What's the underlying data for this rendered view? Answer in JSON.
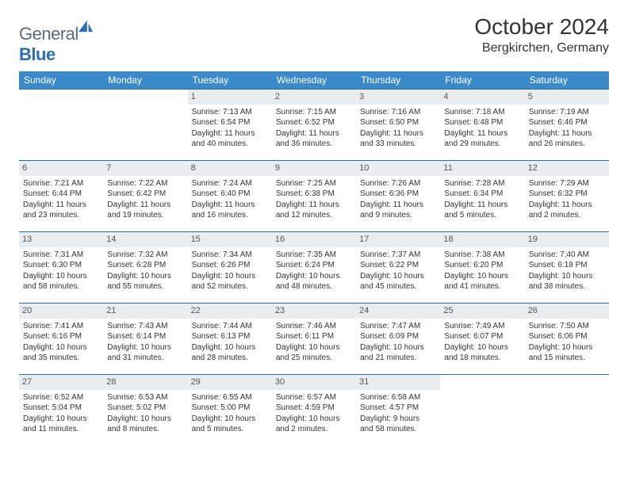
{
  "brand": {
    "part1": "General",
    "part2": "Blue"
  },
  "title": "October 2024",
  "location": "Bergkirchen, Germany",
  "colors": {
    "header_bar": "#3a8ac9",
    "week_border": "#2a6fb5",
    "daynum_bg": "#e9edf0",
    "text": "#333333",
    "logo_gray": "#5a6a78",
    "logo_blue": "#2a6fb5",
    "background": "#ffffff"
  },
  "day_headers": [
    "Sunday",
    "Monday",
    "Tuesday",
    "Wednesday",
    "Thursday",
    "Friday",
    "Saturday"
  ],
  "weeks": [
    [
      null,
      null,
      {
        "n": "1",
        "sunrise": "Sunrise: 7:13 AM",
        "sunset": "Sunset: 6:54 PM",
        "day1": "Daylight: 11 hours",
        "day2": "and 40 minutes."
      },
      {
        "n": "2",
        "sunrise": "Sunrise: 7:15 AM",
        "sunset": "Sunset: 6:52 PM",
        "day1": "Daylight: 11 hours",
        "day2": "and 36 minutes."
      },
      {
        "n": "3",
        "sunrise": "Sunrise: 7:16 AM",
        "sunset": "Sunset: 6:50 PM",
        "day1": "Daylight: 11 hours",
        "day2": "and 33 minutes."
      },
      {
        "n": "4",
        "sunrise": "Sunrise: 7:18 AM",
        "sunset": "Sunset: 6:48 PM",
        "day1": "Daylight: 11 hours",
        "day2": "and 29 minutes."
      },
      {
        "n": "5",
        "sunrise": "Sunrise: 7:19 AM",
        "sunset": "Sunset: 6:46 PM",
        "day1": "Daylight: 11 hours",
        "day2": "and 26 minutes."
      }
    ],
    [
      {
        "n": "6",
        "sunrise": "Sunrise: 7:21 AM",
        "sunset": "Sunset: 6:44 PM",
        "day1": "Daylight: 11 hours",
        "day2": "and 23 minutes."
      },
      {
        "n": "7",
        "sunrise": "Sunrise: 7:22 AM",
        "sunset": "Sunset: 6:42 PM",
        "day1": "Daylight: 11 hours",
        "day2": "and 19 minutes."
      },
      {
        "n": "8",
        "sunrise": "Sunrise: 7:24 AM",
        "sunset": "Sunset: 6:40 PM",
        "day1": "Daylight: 11 hours",
        "day2": "and 16 minutes."
      },
      {
        "n": "9",
        "sunrise": "Sunrise: 7:25 AM",
        "sunset": "Sunset: 6:38 PM",
        "day1": "Daylight: 11 hours",
        "day2": "and 12 minutes."
      },
      {
        "n": "10",
        "sunrise": "Sunrise: 7:26 AM",
        "sunset": "Sunset: 6:36 PM",
        "day1": "Daylight: 11 hours",
        "day2": "and 9 minutes."
      },
      {
        "n": "11",
        "sunrise": "Sunrise: 7:28 AM",
        "sunset": "Sunset: 6:34 PM",
        "day1": "Daylight: 11 hours",
        "day2": "and 5 minutes."
      },
      {
        "n": "12",
        "sunrise": "Sunrise: 7:29 AM",
        "sunset": "Sunset: 6:32 PM",
        "day1": "Daylight: 11 hours",
        "day2": "and 2 minutes."
      }
    ],
    [
      {
        "n": "13",
        "sunrise": "Sunrise: 7:31 AM",
        "sunset": "Sunset: 6:30 PM",
        "day1": "Daylight: 10 hours",
        "day2": "and 58 minutes."
      },
      {
        "n": "14",
        "sunrise": "Sunrise: 7:32 AM",
        "sunset": "Sunset: 6:28 PM",
        "day1": "Daylight: 10 hours",
        "day2": "and 55 minutes."
      },
      {
        "n": "15",
        "sunrise": "Sunrise: 7:34 AM",
        "sunset": "Sunset: 6:26 PM",
        "day1": "Daylight: 10 hours",
        "day2": "and 52 minutes."
      },
      {
        "n": "16",
        "sunrise": "Sunrise: 7:35 AM",
        "sunset": "Sunset: 6:24 PM",
        "day1": "Daylight: 10 hours",
        "day2": "and 48 minutes."
      },
      {
        "n": "17",
        "sunrise": "Sunrise: 7:37 AM",
        "sunset": "Sunset: 6:22 PM",
        "day1": "Daylight: 10 hours",
        "day2": "and 45 minutes."
      },
      {
        "n": "18",
        "sunrise": "Sunrise: 7:38 AM",
        "sunset": "Sunset: 6:20 PM",
        "day1": "Daylight: 10 hours",
        "day2": "and 41 minutes."
      },
      {
        "n": "19",
        "sunrise": "Sunrise: 7:40 AM",
        "sunset": "Sunset: 6:18 PM",
        "day1": "Daylight: 10 hours",
        "day2": "and 38 minutes."
      }
    ],
    [
      {
        "n": "20",
        "sunrise": "Sunrise: 7:41 AM",
        "sunset": "Sunset: 6:16 PM",
        "day1": "Daylight: 10 hours",
        "day2": "and 35 minutes."
      },
      {
        "n": "21",
        "sunrise": "Sunrise: 7:43 AM",
        "sunset": "Sunset: 6:14 PM",
        "day1": "Daylight: 10 hours",
        "day2": "and 31 minutes."
      },
      {
        "n": "22",
        "sunrise": "Sunrise: 7:44 AM",
        "sunset": "Sunset: 6:13 PM",
        "day1": "Daylight: 10 hours",
        "day2": "and 28 minutes."
      },
      {
        "n": "23",
        "sunrise": "Sunrise: 7:46 AM",
        "sunset": "Sunset: 6:11 PM",
        "day1": "Daylight: 10 hours",
        "day2": "and 25 minutes."
      },
      {
        "n": "24",
        "sunrise": "Sunrise: 7:47 AM",
        "sunset": "Sunset: 6:09 PM",
        "day1": "Daylight: 10 hours",
        "day2": "and 21 minutes."
      },
      {
        "n": "25",
        "sunrise": "Sunrise: 7:49 AM",
        "sunset": "Sunset: 6:07 PM",
        "day1": "Daylight: 10 hours",
        "day2": "and 18 minutes."
      },
      {
        "n": "26",
        "sunrise": "Sunrise: 7:50 AM",
        "sunset": "Sunset: 6:06 PM",
        "day1": "Daylight: 10 hours",
        "day2": "and 15 minutes."
      }
    ],
    [
      {
        "n": "27",
        "sunrise": "Sunrise: 6:52 AM",
        "sunset": "Sunset: 5:04 PM",
        "day1": "Daylight: 10 hours",
        "day2": "and 11 minutes."
      },
      {
        "n": "28",
        "sunrise": "Sunrise: 6:53 AM",
        "sunset": "Sunset: 5:02 PM",
        "day1": "Daylight: 10 hours",
        "day2": "and 8 minutes."
      },
      {
        "n": "29",
        "sunrise": "Sunrise: 6:55 AM",
        "sunset": "Sunset: 5:00 PM",
        "day1": "Daylight: 10 hours",
        "day2": "and 5 minutes."
      },
      {
        "n": "30",
        "sunrise": "Sunrise: 6:57 AM",
        "sunset": "Sunset: 4:59 PM",
        "day1": "Daylight: 10 hours",
        "day2": "and 2 minutes."
      },
      {
        "n": "31",
        "sunrise": "Sunrise: 6:58 AM",
        "sunset": "Sunset: 4:57 PM",
        "day1": "Daylight: 9 hours",
        "day2": "and 58 minutes."
      },
      null,
      null
    ]
  ]
}
